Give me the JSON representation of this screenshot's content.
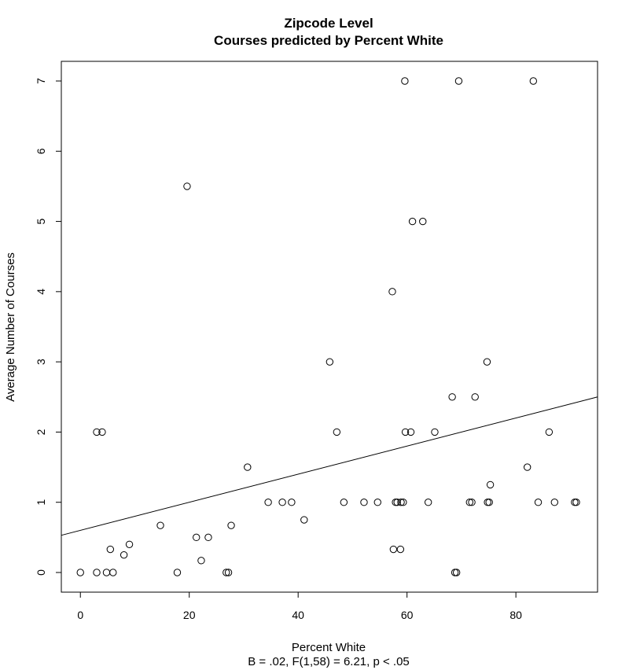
{
  "chart_data": {
    "type": "scatter",
    "title": "Zipcode Level",
    "subtitle": "Courses predicted by Percent White",
    "xlabel": "Percent White",
    "xlabel_sub": "B = .02, F(1,58) = 6.21, p < .05",
    "ylabel": "Average Number of Courses",
    "xlim": [
      -3.5,
      95
    ],
    "ylim": [
      -0.28,
      7.28
    ],
    "xticks": [
      0,
      20,
      40,
      60,
      80
    ],
    "yticks": [
      0,
      1,
      2,
      3,
      4,
      5,
      6,
      7
    ],
    "grid": false,
    "regression_line": {
      "intercept": 0.6,
      "slope": 0.02
    },
    "points": [
      {
        "x": 0,
        "y": 0
      },
      {
        "x": 3,
        "y": 0
      },
      {
        "x": 4.8,
        "y": 0
      },
      {
        "x": 6,
        "y": 0
      },
      {
        "x": 3,
        "y": 2
      },
      {
        "x": 4,
        "y": 2
      },
      {
        "x": 5.5,
        "y": 0.33
      },
      {
        "x": 8,
        "y": 0.25
      },
      {
        "x": 9,
        "y": 0.4
      },
      {
        "x": 14.7,
        "y": 0.67
      },
      {
        "x": 17.8,
        "y": 0
      },
      {
        "x": 19.6,
        "y": 5.5
      },
      {
        "x": 21.3,
        "y": 0.5
      },
      {
        "x": 22.2,
        "y": 0.17
      },
      {
        "x": 23.5,
        "y": 0.5
      },
      {
        "x": 26.8,
        "y": 0
      },
      {
        "x": 27.2,
        "y": 0
      },
      {
        "x": 27.7,
        "y": 0.67
      },
      {
        "x": 30.7,
        "y": 1.5
      },
      {
        "x": 34.5,
        "y": 1
      },
      {
        "x": 37.1,
        "y": 1
      },
      {
        "x": 38.8,
        "y": 1
      },
      {
        "x": 41.1,
        "y": 0.75
      },
      {
        "x": 45.8,
        "y": 3
      },
      {
        "x": 47.1,
        "y": 2
      },
      {
        "x": 48.4,
        "y": 1
      },
      {
        "x": 52.1,
        "y": 1
      },
      {
        "x": 54.6,
        "y": 1
      },
      {
        "x": 57.3,
        "y": 4
      },
      {
        "x": 57.5,
        "y": 0.33
      },
      {
        "x": 57.9,
        "y": 1
      },
      {
        "x": 58.2,
        "y": 1
      },
      {
        "x": 58.8,
        "y": 0.33
      },
      {
        "x": 58.9,
        "y": 1
      },
      {
        "x": 59.3,
        "y": 1
      },
      {
        "x": 59.6,
        "y": 7
      },
      {
        "x": 59.7,
        "y": 2
      },
      {
        "x": 60.7,
        "y": 2
      },
      {
        "x": 61,
        "y": 5
      },
      {
        "x": 62.9,
        "y": 5
      },
      {
        "x": 63.9,
        "y": 1
      },
      {
        "x": 65.1,
        "y": 2
      },
      {
        "x": 68.3,
        "y": 2.5
      },
      {
        "x": 68.8,
        "y": 0
      },
      {
        "x": 69.1,
        "y": 0
      },
      {
        "x": 69.5,
        "y": 7
      },
      {
        "x": 71.5,
        "y": 1
      },
      {
        "x": 71.9,
        "y": 1
      },
      {
        "x": 72.5,
        "y": 2.5
      },
      {
        "x": 74.7,
        "y": 3
      },
      {
        "x": 74.8,
        "y": 1
      },
      {
        "x": 75.1,
        "y": 1
      },
      {
        "x": 75.3,
        "y": 1.25
      },
      {
        "x": 82.1,
        "y": 1.5
      },
      {
        "x": 83.2,
        "y": 7
      },
      {
        "x": 84.1,
        "y": 1
      },
      {
        "x": 86.1,
        "y": 2
      },
      {
        "x": 87.1,
        "y": 1
      },
      {
        "x": 90.8,
        "y": 1
      },
      {
        "x": 91.1,
        "y": 1
      }
    ]
  }
}
